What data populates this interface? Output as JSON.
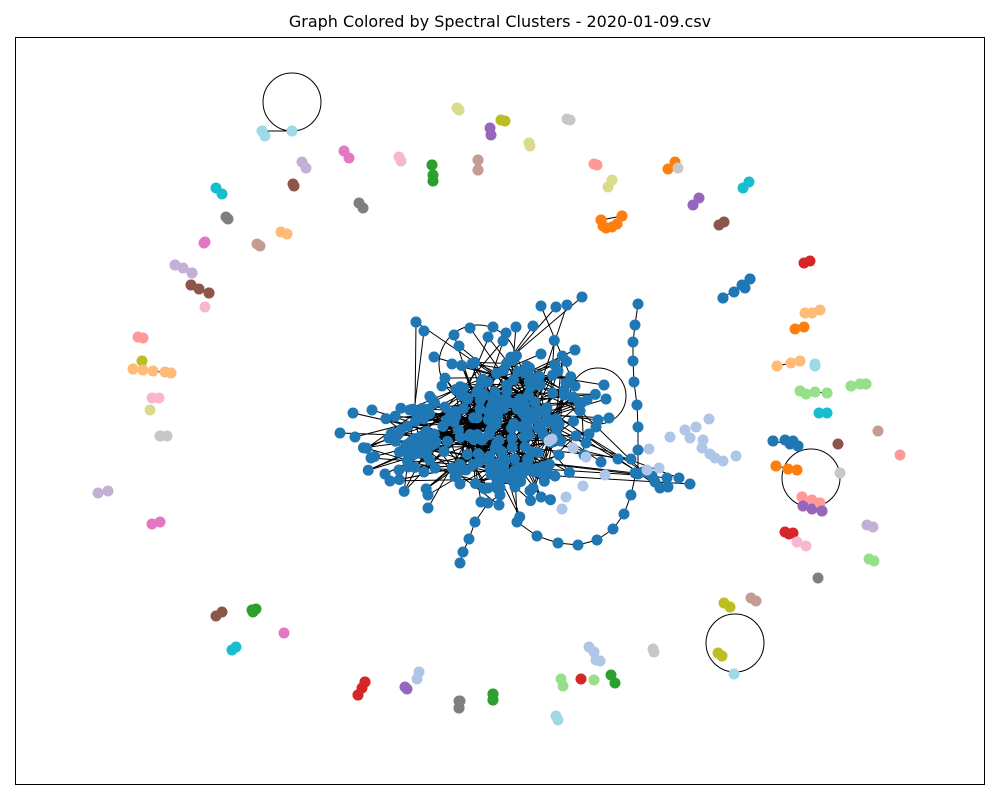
{
  "title": "Graph Colored by Spectral Clusters - 2020-01-09.csv",
  "colors": {
    "blue": "#1f77b4",
    "light_blue": "#aec7e8",
    "orange": "#ff7f0e",
    "light_orange": "#ffbb78",
    "green": "#2ca02c",
    "light_green": "#98df8a",
    "red": "#d62728",
    "salmon": "#ff9896",
    "purple": "#9467bd",
    "lavender": "#c5b0d5",
    "brown": "#8c564b",
    "tan": "#c49c94",
    "pink": "#e377c2",
    "light_pink": "#f7b6d2",
    "gray": "#7f7f7f",
    "light_gray": "#c7c7c7",
    "olive": "#bcbd22",
    "khaki": "#dbdb8d",
    "cyan": "#17becf",
    "light_cyan": "#9edae5",
    "edge": "#000000"
  }
}
